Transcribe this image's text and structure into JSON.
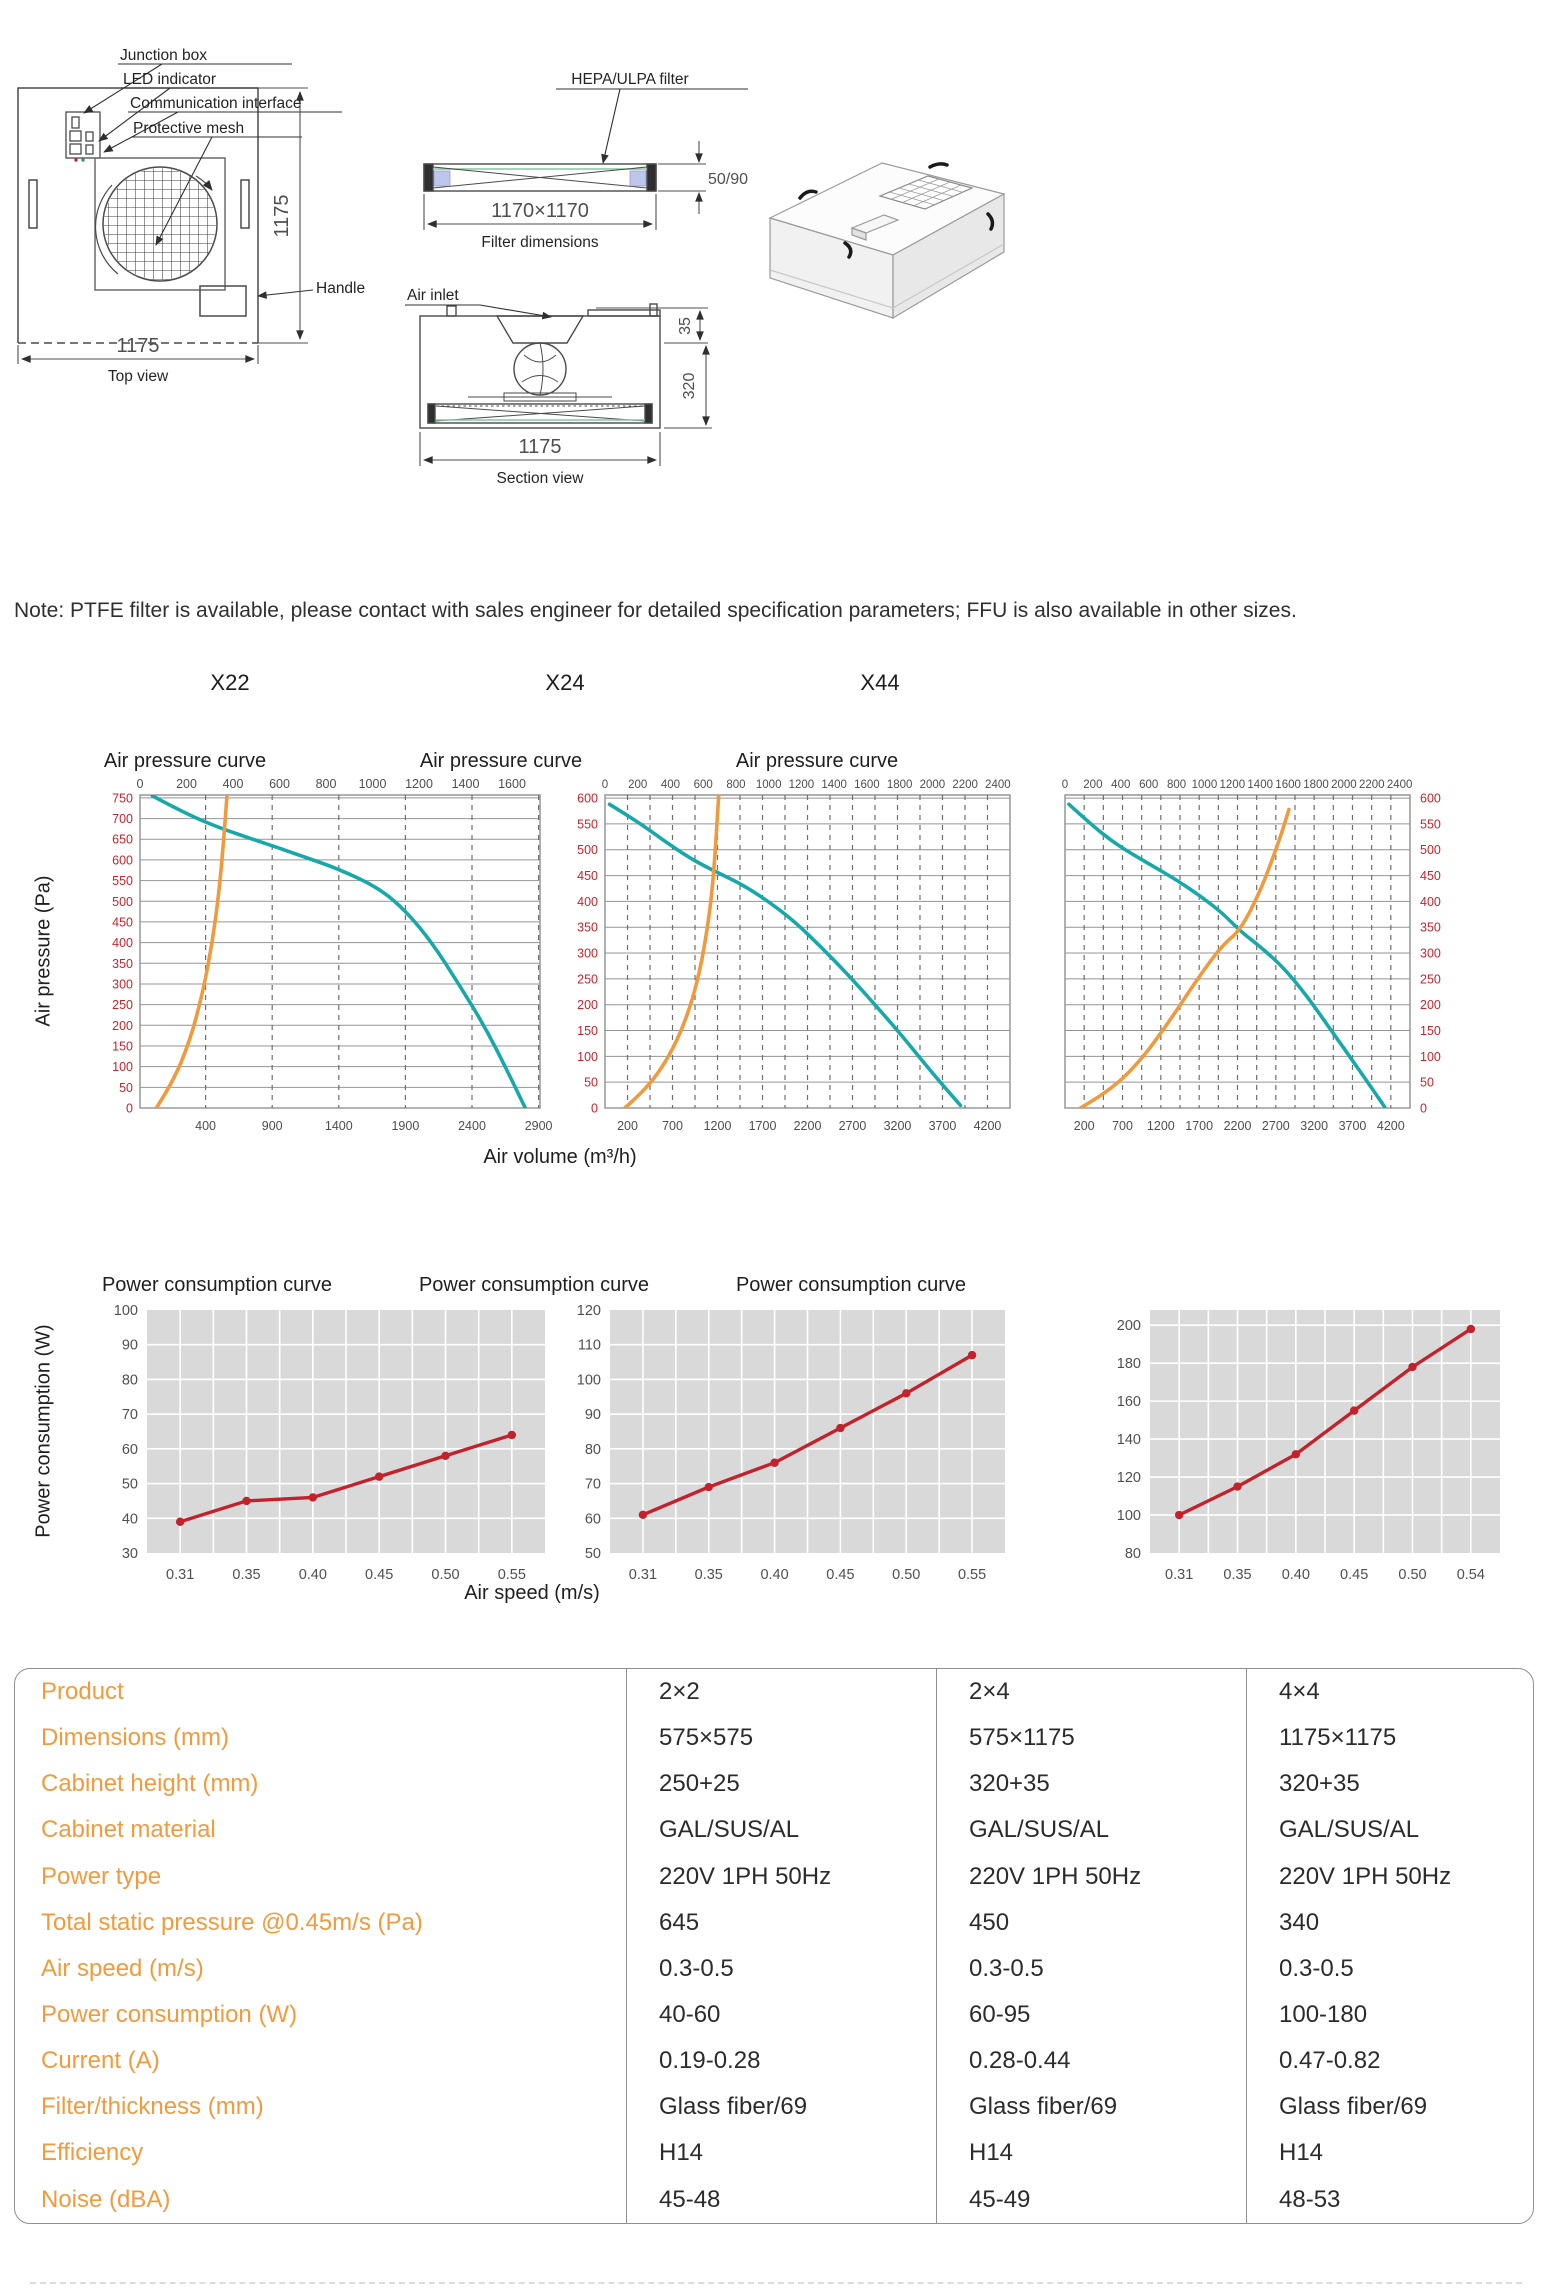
{
  "diagrams": {
    "top_view": {
      "caption": "Top view",
      "dim_width": "1175",
      "dim_height": "1175",
      "labels": {
        "junction_box": "Junction box",
        "led": "LED indicator",
        "comm": "Communication interface",
        "mesh": "Protective mesh",
        "handle": "Handle"
      }
    },
    "filter_view": {
      "label": "HEPA/ULPA filter",
      "dim_thickness": "50/90",
      "dim_size": "1170×1170",
      "caption": "Filter dimensions"
    },
    "section_view": {
      "label_air_inlet": "Air inlet",
      "dim_inlet": "35",
      "dim_body": "320",
      "dim_width": "1175",
      "caption": "Section view"
    }
  },
  "note": "Note: PTFE filter is available, please contact with sales engineer for detailed specification parameters; FFU is also available in other sizes.",
  "models": [
    "X22",
    "X24",
    "X44"
  ],
  "axis_labels": {
    "air_pressure": "Air pressure (Pa)",
    "air_volume": "Air volume (m³/h)",
    "power": "Power consumption (W)",
    "air_speed": "Air speed (m/s)"
  },
  "colors": {
    "fan_curve_teal": "#17a8aa",
    "resistance_curve_orange": "#f09a3e",
    "axis_label_red": "#c4242c",
    "power_line_red": "#c2222b",
    "power_plot_bg": "#d9d9d9",
    "grid_gray": "#949494",
    "table_label_orange": "#ef9b3e"
  },
  "chart_data": [
    {
      "id": "x22-air",
      "model": "X22",
      "type": "line",
      "title": "Air pressure curve",
      "ylabel": "Air pressure (Pa)",
      "xlabel": "Air volume (m³/h)",
      "ylim": [
        0,
        757
      ],
      "y_ticks": [
        0,
        50,
        100,
        150,
        200,
        250,
        300,
        350,
        400,
        450,
        500,
        550,
        600,
        650,
        700,
        750
      ],
      "top_ticks": [
        0,
        200,
        400,
        600,
        800,
        1000,
        1200,
        1400,
        1600
      ],
      "bottom_ticks": [
        400,
        900,
        1400,
        1900,
        2400,
        2900
      ],
      "series": [
        {
          "name": "fan-pressure-curve",
          "color": "#17a8aa",
          "points": [
            [
              0,
              755
            ],
            [
              250,
              712
            ],
            [
              500,
              678
            ],
            [
              800,
              645
            ],
            [
              1100,
              612
            ],
            [
              1400,
              578
            ],
            [
              1700,
              532
            ],
            [
              1900,
              478
            ],
            [
              2100,
              400
            ],
            [
              2300,
              300
            ],
            [
              2500,
              195
            ],
            [
              2680,
              80
            ],
            [
              2800,
              0
            ]
          ]
        },
        {
          "name": "filter-resistance-curve",
          "color": "#f09a3e",
          "points": [
            [
              30,
              0
            ],
            [
              150,
              60
            ],
            [
              280,
              160
            ],
            [
              380,
              280
            ],
            [
              450,
              400
            ],
            [
              500,
              520
            ],
            [
              535,
              645
            ],
            [
              565,
              775
            ]
          ]
        }
      ]
    },
    {
      "id": "x24-air",
      "model": "X24",
      "type": "line",
      "title": "Air pressure curve",
      "ylabel": "Air pressure (Pa)",
      "xlabel": "Air volume (m³/h)",
      "ylim": [
        0,
        606
      ],
      "y_ticks": [
        0,
        50,
        100,
        150,
        200,
        250,
        300,
        350,
        400,
        450,
        500,
        550,
        600
      ],
      "top_ticks": [
        0,
        200,
        400,
        600,
        800,
        1000,
        1200,
        1400,
        1600,
        1800,
        2000,
        2200,
        2400
      ],
      "bottom_ticks": [
        200,
        700,
        1200,
        1700,
        2200,
        2700,
        3200,
        3700,
        4200
      ],
      "series": [
        {
          "name": "fan-pressure-curve",
          "color": "#17a8aa",
          "points": [
            [
              0,
              588
            ],
            [
              300,
              556
            ],
            [
              600,
              518
            ],
            [
              900,
              483
            ],
            [
              1150,
              460
            ],
            [
              1450,
              435
            ],
            [
              1750,
              402
            ],
            [
              2050,
              362
            ],
            [
              2350,
              312
            ],
            [
              2650,
              258
            ],
            [
              2950,
              200
            ],
            [
              3250,
              140
            ],
            [
              3600,
              65
            ],
            [
              3900,
              5
            ]
          ]
        },
        {
          "name": "filter-resistance-curve",
          "color": "#f09a3e",
          "points": [
            [
              170,
              0
            ],
            [
              400,
              35
            ],
            [
              650,
              95
            ],
            [
              850,
              170
            ],
            [
              1000,
              260
            ],
            [
              1100,
              360
            ],
            [
              1160,
              455
            ],
            [
              1215,
              612
            ]
          ]
        }
      ]
    },
    {
      "id": "x44-air",
      "model": "X44",
      "type": "line",
      "title": "Air pressure curve",
      "ylabel": "Air pressure (Pa)",
      "xlabel": "Air volume (m³/h)",
      "ylim": [
        0,
        606
      ],
      "y_ticks": [
        0,
        50,
        100,
        150,
        200,
        250,
        300,
        350,
        400,
        450,
        500,
        550,
        600
      ],
      "top_ticks": [
        0,
        200,
        400,
        600,
        800,
        1000,
        1200,
        1400,
        1600,
        1800,
        2000,
        2200,
        2400
      ],
      "bottom_ticks": [
        200,
        700,
        1200,
        1700,
        2200,
        2700,
        3200,
        3700,
        4200
      ],
      "series": [
        {
          "name": "fan-pressure-curve",
          "color": "#17a8aa",
          "points": [
            [
              0,
              588
            ],
            [
              300,
              548
            ],
            [
              550,
              518
            ],
            [
              800,
              494
            ],
            [
              1100,
              468
            ],
            [
              1400,
              442
            ],
            [
              1700,
              412
            ],
            [
              2000,
              378
            ],
            [
              2240,
              342
            ],
            [
              2500,
              312
            ],
            [
              2800,
              272
            ],
            [
              3100,
              218
            ],
            [
              3400,
              155
            ],
            [
              3700,
              92
            ],
            [
              4000,
              28
            ],
            [
              4120,
              2
            ]
          ]
        },
        {
          "name": "filter-resistance-curve",
          "color": "#f09a3e",
          "points": [
            [
              150,
              0
            ],
            [
              500,
              30
            ],
            [
              900,
              85
            ],
            [
              1300,
              165
            ],
            [
              1700,
              255
            ],
            [
              2000,
              315
            ],
            [
              2240,
              345
            ],
            [
              2500,
              420
            ],
            [
              2750,
              520
            ],
            [
              2870,
              578
            ]
          ]
        }
      ]
    },
    {
      "id": "x22-power",
      "model": "X22",
      "type": "line",
      "title": "Power consumption curve",
      "ylabel": "Power consumption (W)",
      "xlabel": "Air speed (m/s)",
      "categories": [
        "0.31",
        "0.35",
        "0.40",
        "0.45",
        "0.50",
        "0.55"
      ],
      "values": [
        39,
        45,
        46,
        52,
        58,
        64
      ],
      "y_ticks": [
        30,
        40,
        50,
        60,
        70,
        80,
        90,
        100
      ],
      "ylim": [
        30,
        100
      ]
    },
    {
      "id": "x24-power",
      "model": "X24",
      "type": "line",
      "title": "Power consumption curve",
      "ylabel": "Power consumption (W)",
      "xlabel": "Air speed (m/s)",
      "categories": [
        "0.31",
        "0.35",
        "0.40",
        "0.45",
        "0.50",
        "0.55"
      ],
      "values": [
        61,
        69,
        76,
        86,
        96,
        107
      ],
      "y_ticks": [
        50,
        60,
        70,
        80,
        90,
        100,
        110,
        120
      ],
      "ylim": [
        50,
        120
      ]
    },
    {
      "id": "x44-power",
      "model": "X44",
      "type": "line",
      "title": "Power consumption curve",
      "ylabel": "Power consumption (W)",
      "xlabel": "Air speed (m/s)",
      "categories": [
        "0.31",
        "0.35",
        "0.40",
        "0.45",
        "0.50",
        "0.54"
      ],
      "values": [
        100,
        115,
        132,
        155,
        178,
        198
      ],
      "y_ticks": [
        80,
        100,
        120,
        140,
        160,
        180,
        200
      ],
      "ylim": [
        80,
        208
      ]
    }
  ],
  "table": {
    "rows": [
      {
        "label": "Product",
        "values": [
          "2×2",
          "2×4",
          "4×4"
        ]
      },
      {
        "label": "Dimensions (mm)",
        "values": [
          "575×575",
          "575×1175",
          "1175×1175"
        ]
      },
      {
        "label": "Cabinet height (mm)",
        "values": [
          "250+25",
          "320+35",
          "320+35"
        ]
      },
      {
        "label": "Cabinet material",
        "values": [
          "GAL/SUS/AL",
          "GAL/SUS/AL",
          "GAL/SUS/AL"
        ]
      },
      {
        "label": "Power type",
        "values": [
          "220V 1PH 50Hz",
          "220V 1PH 50Hz",
          "220V 1PH 50Hz"
        ]
      },
      {
        "label": "Total static pressure @0.45m/s (Pa)",
        "values": [
          "645",
          "450",
          "340"
        ]
      },
      {
        "label": "Air speed (m/s)",
        "values": [
          "0.3-0.5",
          "0.3-0.5",
          "0.3-0.5"
        ]
      },
      {
        "label": "Power consumption (W)",
        "values": [
          "40-60",
          "60-95",
          "100-180"
        ]
      },
      {
        "label": "Current (A)",
        "values": [
          "0.19-0.28",
          "0.28-0.44",
          "0.47-0.82"
        ]
      },
      {
        "label": "Filter/thickness (mm)",
        "values": [
          "Glass fiber/69",
          "Glass fiber/69",
          "Glass fiber/69"
        ]
      },
      {
        "label": "Efficiency",
        "values": [
          "H14",
          "H14",
          "H14"
        ]
      },
      {
        "label": "Noise (dBA)",
        "values": [
          "45-48",
          "45-49",
          "48-53"
        ]
      }
    ]
  }
}
